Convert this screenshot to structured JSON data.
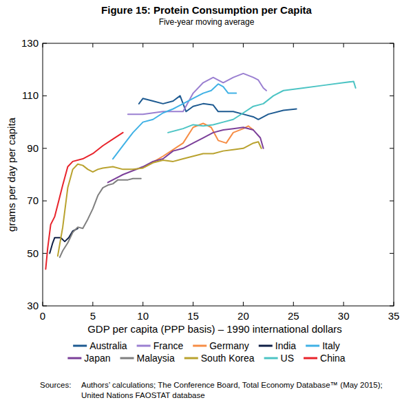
{
  "chart_data": {
    "type": "line",
    "title": "Figure 15: Protein Consumption per Capita",
    "subtitle": "Five-year moving average",
    "y_label": "grams per day per capita",
    "x_label": "GDP per capita (PPP basis) – 1990 international dollars",
    "xlim": [
      0,
      35
    ],
    "xticks": [
      0,
      5,
      10,
      15,
      20,
      25,
      30,
      35
    ],
    "ylim": [
      30,
      130
    ],
    "yticks": [
      30,
      50,
      70,
      90,
      110,
      130
    ],
    "grid": false,
    "legend": "bottom",
    "sources_label": "Sources:",
    "sources": [
      "Authors’ calculations; The Conference Board, Total Economy Database™ (May 2015);",
      "United Nations FAOSTAT database"
    ],
    "series": [
      {
        "name": "Australia",
        "color": "#1d5a91",
        "x": [
          9.6,
          10,
          11,
          12,
          13,
          13.7,
          14.3,
          15,
          16,
          17,
          17.5,
          19,
          20,
          21,
          21.5,
          22.5,
          24,
          25.3
        ],
        "values": [
          107,
          109,
          108,
          107,
          108,
          110,
          104,
          106,
          107,
          106.5,
          104,
          104,
          103,
          102,
          101,
          103,
          104.5,
          105
        ]
      },
      {
        "name": "France",
        "color": "#9a7fd1",
        "x": [
          8.5,
          10,
          12,
          14,
          15,
          16,
          17,
          18,
          19,
          20,
          21,
          21.5,
          22,
          22.3
        ],
        "values": [
          103,
          103,
          104,
          104,
          111,
          115,
          117,
          115,
          117,
          118.5,
          117,
          116,
          113,
          112
        ]
      },
      {
        "name": "Germany",
        "color": "#f68d45",
        "x": [
          10.2,
          12,
          14,
          15,
          16,
          16.8,
          17.5,
          18.3,
          19,
          20,
          20.5,
          21
        ],
        "values": [
          83,
          87,
          92,
          98,
          99.5,
          98,
          93,
          92,
          96,
          97.5,
          98.5,
          97
        ]
      },
      {
        "name": "India",
        "color": "#0f1f45",
        "x": [
          0.7,
          1,
          1.2,
          1.8,
          2.2,
          2.6,
          3,
          3.5
        ],
        "values": [
          50,
          54,
          56,
          56,
          54.5,
          56,
          58.5,
          59.5
        ]
      },
      {
        "name": "Italy",
        "color": "#3fb1e5",
        "x": [
          7,
          8,
          9,
          10,
          11,
          12,
          13,
          14,
          15,
          16,
          16.8,
          17.5,
          18,
          18.5,
          19.3
        ],
        "values": [
          86,
          91,
          96,
          100,
          101,
          103.5,
          105,
          107,
          109,
          111,
          112,
          114.5,
          113.5,
          111,
          111
        ]
      },
      {
        "name": "Japan",
        "color": "#7b3f99",
        "x": [
          6.5,
          8,
          10,
          11,
          12,
          13,
          14,
          15,
          16,
          17,
          18,
          19,
          20,
          21,
          21.7,
          22
        ],
        "values": [
          77,
          80,
          83,
          85,
          86,
          89,
          90,
          92,
          94,
          96,
          97,
          97.5,
          98,
          97,
          94,
          90
        ]
      },
      {
        "name": "Malaysia",
        "color": "#7f7f7f",
        "x": [
          1.7,
          2,
          2.5,
          3,
          3.5,
          4,
          4.5,
          5,
          5.5,
          6,
          6.5,
          7,
          7.5,
          8,
          8.5,
          9,
          9.8
        ],
        "values": [
          48.5,
          51,
          54,
          58,
          60,
          59.5,
          63,
          67,
          72,
          75,
          76,
          76.5,
          78,
          78,
          78,
          78.5,
          78.5
        ]
      },
      {
        "name": "South Korea",
        "color": "#b9a22e",
        "x": [
          1.5,
          2,
          2.5,
          3,
          3.5,
          4,
          4.5,
          5,
          5.5,
          6,
          7,
          8,
          9,
          10,
          11,
          12,
          13,
          14,
          15,
          16,
          17,
          18,
          19,
          20,
          21,
          21.5,
          21.8
        ],
        "values": [
          49,
          60,
          75,
          82,
          84,
          83.5,
          82,
          81,
          82,
          82.5,
          83,
          82,
          82,
          82.5,
          84.5,
          85.5,
          85,
          86,
          87,
          88,
          88,
          89,
          89.5,
          90,
          92,
          92.5,
          90
        ]
      },
      {
        "name": "US",
        "color": "#4cc4c4",
        "x": [
          12.5,
          14,
          15,
          16,
          17,
          18,
          19,
          20,
          21,
          22,
          23,
          24,
          26,
          28,
          30,
          31,
          31.2
        ],
        "values": [
          96,
          97.5,
          99,
          98.5,
          99,
          100,
          101,
          103.5,
          106,
          107,
          110,
          112,
          113,
          114,
          115,
          115.5,
          113
        ]
      },
      {
        "name": "China",
        "color": "#e8232b",
        "x": [
          0.3,
          0.5,
          0.8,
          1.2,
          1.6,
          2,
          2.5,
          3,
          4,
          5,
          6,
          7,
          8
        ],
        "values": [
          44,
          52,
          61,
          64,
          70,
          76,
          83,
          85,
          86,
          88,
          91,
          93.5,
          96
        ]
      }
    ]
  }
}
